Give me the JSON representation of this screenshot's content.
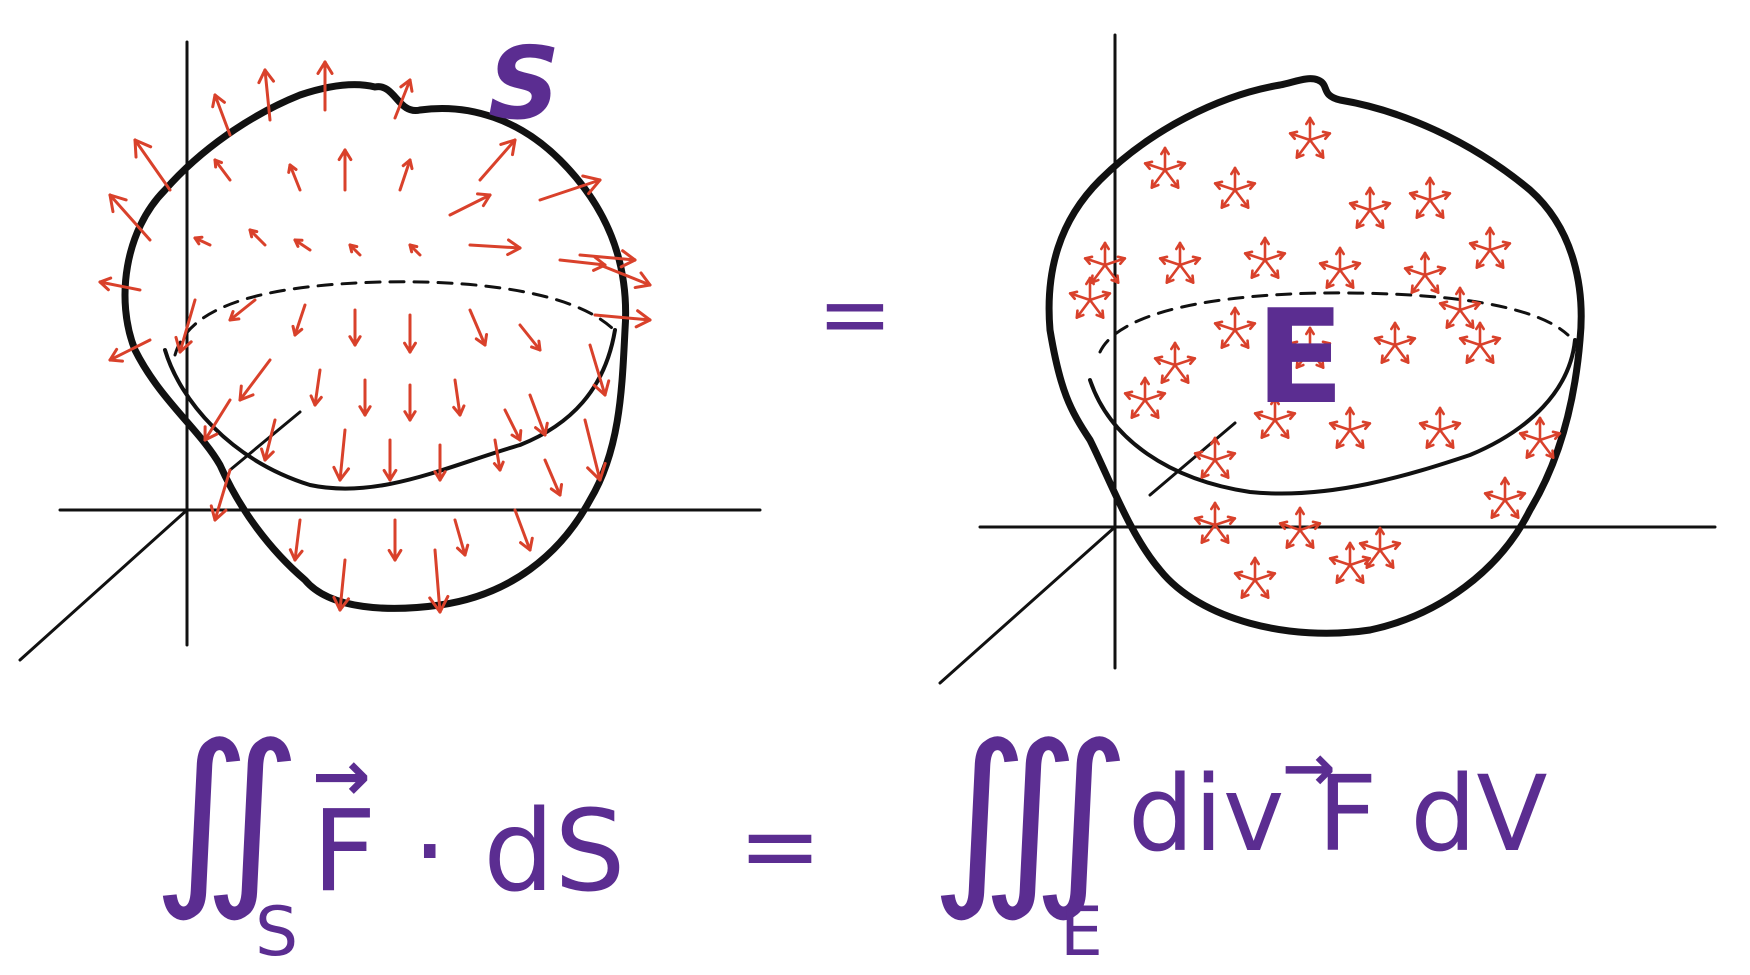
{
  "colors": {
    "ink": "#111111",
    "vector": "#d9412b",
    "label": "#5b2d91",
    "background": "#ffffff"
  },
  "left_panel": {
    "surface_label": "S"
  },
  "middle": {
    "equals": "="
  },
  "right_panel": {
    "region_label": "E"
  },
  "formula": {
    "lhs_integral": "∬",
    "lhs_subscript": "S",
    "lhs_integrand": "F · dS",
    "lhs_vector_arrow": "→",
    "equals": "=",
    "rhs_integral": "∭",
    "rhs_subscript": "E",
    "rhs_integrand": "div F dV",
    "rhs_vector_arrow": "→"
  }
}
